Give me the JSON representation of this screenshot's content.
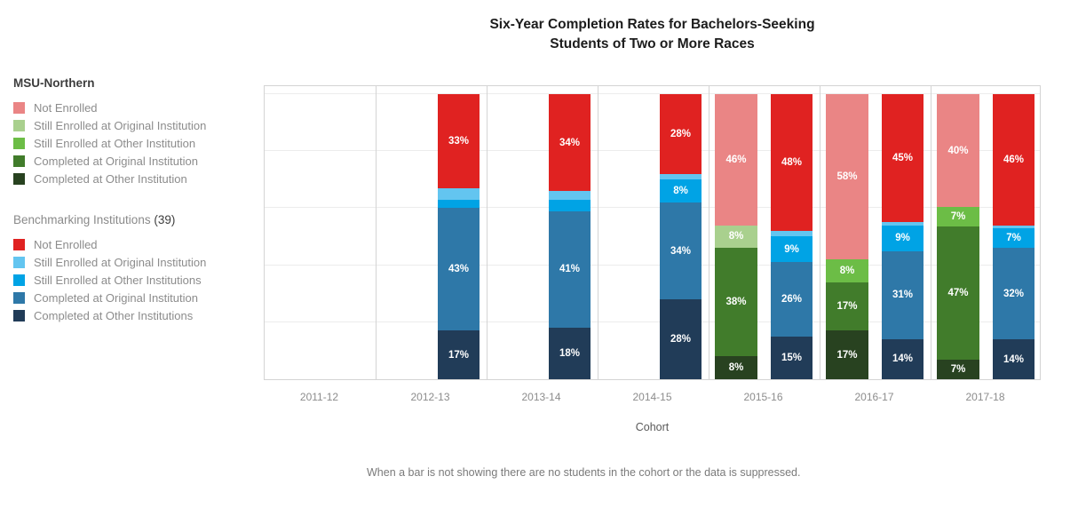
{
  "title": {
    "line1": "Six-Year Completion Rates for Bachelors-Seeking",
    "line2": "Students of Two or More Races"
  },
  "legend": {
    "groups": [
      {
        "name": "MSU-Northern",
        "count": ""
      },
      {
        "name": "Benchmarking Institutions",
        "count": "(39)"
      }
    ]
  },
  "chart_data": {
    "type": "bar",
    "subtype": "grouped-stacked-percent",
    "title": "Six-Year Completion Rates for Bachelors-Seeking Students of Two or More Races",
    "xlabel": "Cohort",
    "ylabel": "",
    "ylim": [
      0,
      100
    ],
    "unit": "%",
    "grid": true,
    "gridlines_pct": [
      20,
      40,
      60,
      80,
      100
    ],
    "legend_position": "left",
    "label_min_pct_shown": 5,
    "categories": [
      "2011-12",
      "2012-13",
      "2013-14",
      "2014-15",
      "2015-16",
      "2016-17",
      "2017-18"
    ],
    "empty_categories_note": "2011-12 has no bars; MSU-Northern has no bars for 2011-12 through 2014-15",
    "series_groups": [
      {
        "group": "MSU-Northern",
        "series": [
          {
            "name": "Not Enrolled",
            "color": "#ea8585",
            "values": [
              null,
              null,
              null,
              null,
              46,
              58,
              40
            ]
          },
          {
            "name": "Still Enrolled at Original Institution",
            "color": "#a9d08e",
            "values": [
              null,
              null,
              null,
              null,
              8,
              null,
              null
            ]
          },
          {
            "name": "Still Enrolled at Other Institution",
            "color": "#6cbd46",
            "values": [
              null,
              null,
              null,
              null,
              null,
              8,
              7
            ]
          },
          {
            "name": "Completed at Original Institution",
            "color": "#417c2b",
            "values": [
              null,
              null,
              null,
              null,
              38,
              17,
              47
            ]
          },
          {
            "name": "Completed at Other Institution",
            "color": "#284220",
            "values": [
              null,
              null,
              null,
              null,
              8,
              17,
              7
            ]
          }
        ]
      },
      {
        "group": "Benchmarking Institutions",
        "series": [
          {
            "name": "Not Enrolled",
            "color": "#e02221",
            "values": [
              null,
              33,
              34,
              28,
              48,
              45,
              46
            ]
          },
          {
            "name": "Still Enrolled at Original Institution",
            "color": "#63c5f0",
            "values": [
              null,
              4,
              3,
              2,
              2,
              1,
              1
            ],
            "note": "thin unlabeled slivers, values estimated"
          },
          {
            "name": "Still Enrolled at Other Institutions",
            "color": "#00a3e5",
            "values": [
              null,
              3,
              4,
              8,
              9,
              9,
              7
            ]
          },
          {
            "name": "Completed at Original Institution",
            "color": "#2e78a8",
            "values": [
              null,
              43,
              41,
              34,
              26,
              31,
              32
            ]
          },
          {
            "name": "Completed at Other Institutions",
            "color": "#213c58",
            "values": [
              null,
              17,
              18,
              28,
              15,
              14,
              14
            ]
          }
        ]
      }
    ]
  },
  "footer": {
    "note": "When a bar is not showing there are no students in the cohort or the data is suppressed."
  }
}
